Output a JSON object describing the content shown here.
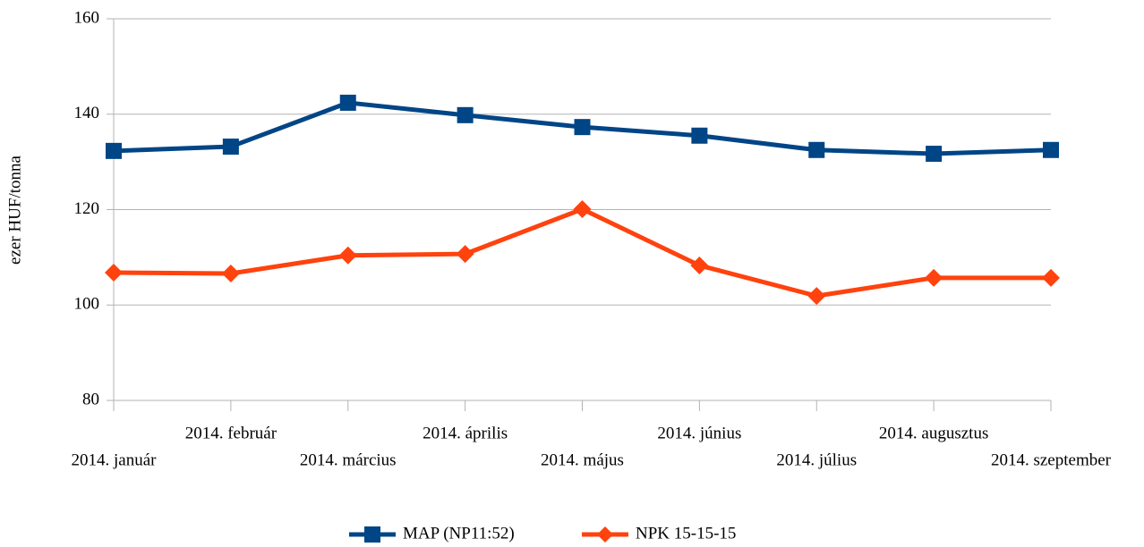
{
  "chart_data": {
    "type": "line",
    "y_label": "ezer HUF/tonna",
    "categories": [
      "2014. január",
      "2014. február",
      "2014. március",
      "2014. április",
      "2014. május",
      "2014. június",
      "2014. július",
      "2014. augusztus",
      "2014. szeptember"
    ],
    "series": [
      {
        "name": "MAP (NP11:52)",
        "color": "#004586",
        "marker": "square",
        "values": [
          132.3,
          133.2,
          142.4,
          139.8,
          137.3,
          135.5,
          132.5,
          131.7,
          132.5
        ]
      },
      {
        "name": "NPK 15-15-15",
        "color": "#ff420e",
        "marker": "diamond",
        "values": [
          106.8,
          106.6,
          110.4,
          110.7,
          120.1,
          108.3,
          101.9,
          105.7,
          105.7
        ]
      }
    ],
    "ylim": [
      80,
      160
    ],
    "yticks": [
      80,
      100,
      120,
      140,
      160
    ],
    "grid": true,
    "legend": "bottom"
  }
}
